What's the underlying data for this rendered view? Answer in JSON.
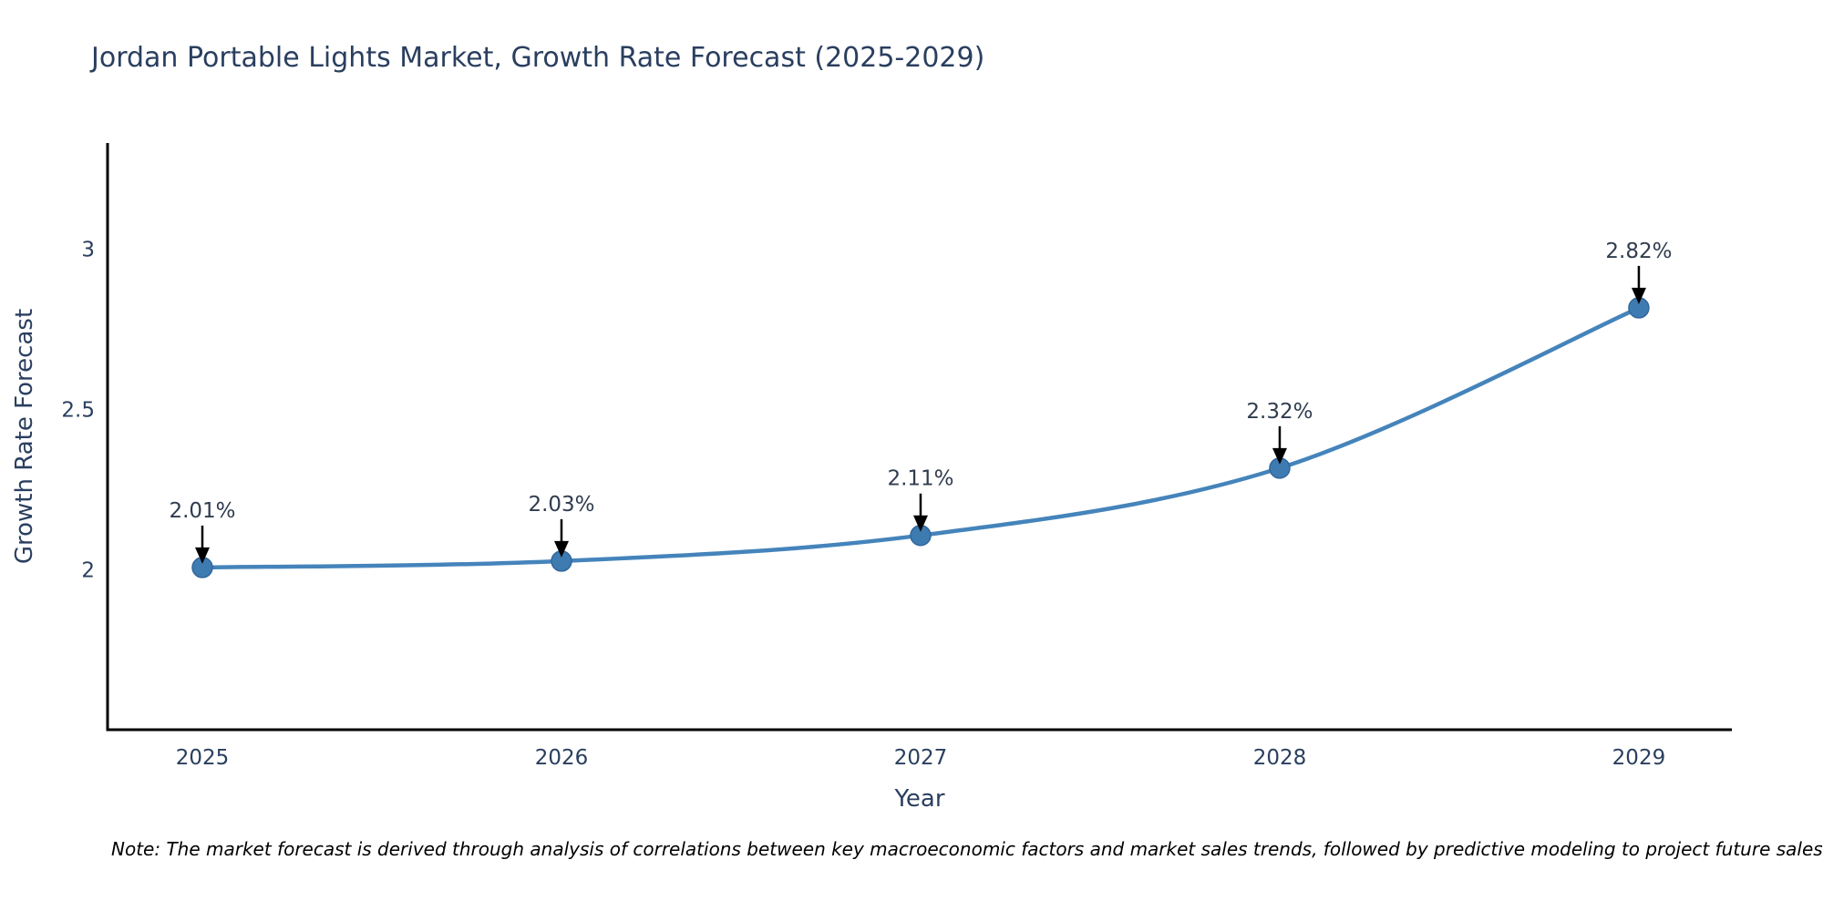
{
  "note": "Note: The market forecast is derived through analysis of correlations between key macroeconomic factors and market sales trends, followed by predictive modeling to project future sales",
  "chart_data": {
    "type": "line",
    "title": "Jordan Portable Lights Market, Growth Rate Forecast (2025-2029)",
    "x": [
      2025,
      2026,
      2027,
      2028,
      2029
    ],
    "x_tick_labels": [
      "2025",
      "2026",
      "2027",
      "2028",
      "2029"
    ],
    "values": [
      2.01,
      2.03,
      2.11,
      2.32,
      2.82
    ],
    "point_labels": [
      "2.01%",
      "2.03%",
      "2.11%",
      "2.32%",
      "2.82%"
    ],
    "xlabel": "Year",
    "ylabel": "Growth Rate Forecast",
    "yticks": [
      2,
      2.5,
      3
    ],
    "ytick_labels": [
      "2",
      "2.5",
      "3"
    ],
    "ylim": [
      1.504,
      3.334
    ],
    "xlim": [
      2024.736,
      2029.259
    ],
    "grid": false,
    "legend": "none",
    "marker_size": 11,
    "line_width": 4.5,
    "colors": {
      "line": "#4584bb",
      "marker": "#3e7bb1",
      "marker_edge": "#31679c",
      "axis": "#000000",
      "tick_text": "#2a3f5f",
      "axis_title_text": "#2a3f5f",
      "title_text": "#2a3f5f",
      "annotation_text": "#303c4f",
      "arrow": "#000000"
    }
  }
}
